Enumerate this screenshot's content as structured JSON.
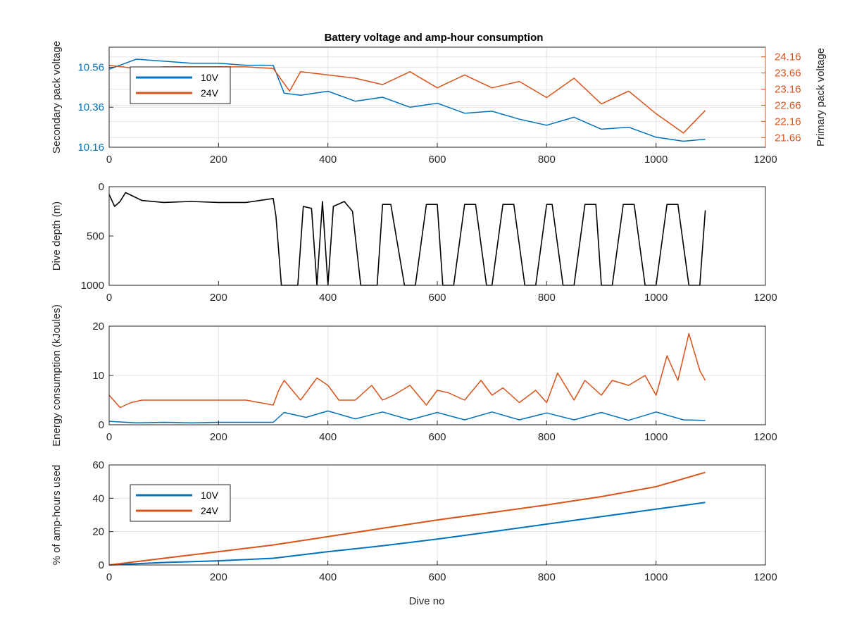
{
  "colors": {
    "s10V": "#0072BD",
    "s24V": "#D95319",
    "depth": "#000000",
    "grid": "#e3e3e3",
    "axis": "#262626"
  },
  "chart_data": [
    {
      "type": "line",
      "title": "Battery voltage and amp-hour consumption",
      "xlabel": "",
      "ylabel": "Secondary pack voltage",
      "y2label": "Primary pack voltage",
      "xlim": [
        0,
        1200
      ],
      "ylim": [
        10.16,
        10.66
      ],
      "y2lim": [
        21.36,
        24.46
      ],
      "xticks": [
        "0",
        "200",
        "400",
        "600",
        "800",
        "1000",
        "1200"
      ],
      "yticks": [
        "10.16",
        "10.36",
        "10.56"
      ],
      "y2ticks": [
        "21.66",
        "22.16",
        "22.66",
        "23.16",
        "23.66",
        "24.16"
      ],
      "grid": true,
      "legend": "top-left",
      "series": [
        {
          "name": "10V",
          "axis": "left",
          "x": [
            0,
            50,
            100,
            150,
            200,
            250,
            300,
            320,
            350,
            400,
            450,
            500,
            550,
            600,
            650,
            700,
            750,
            800,
            850,
            900,
            950,
            1000,
            1050,
            1090
          ],
          "y": [
            10.55,
            10.6,
            10.59,
            10.58,
            10.58,
            10.57,
            10.57,
            10.43,
            10.42,
            10.44,
            10.39,
            10.41,
            10.36,
            10.38,
            10.33,
            10.34,
            10.3,
            10.27,
            10.31,
            10.25,
            10.26,
            10.21,
            10.19,
            10.2
          ]
        },
        {
          "name": "24V",
          "axis": "right",
          "x": [
            0,
            50,
            100,
            150,
            200,
            250,
            300,
            330,
            350,
            400,
            450,
            500,
            550,
            600,
            650,
            700,
            750,
            800,
            850,
            900,
            950,
            1000,
            1050,
            1090
          ],
          "y": [
            23.9,
            23.8,
            23.85,
            23.85,
            23.85,
            23.85,
            23.8,
            23.1,
            23.7,
            23.6,
            23.5,
            23.3,
            23.7,
            23.2,
            23.6,
            23.2,
            23.4,
            22.9,
            23.5,
            22.7,
            23.1,
            22.4,
            21.8,
            22.5
          ]
        }
      ]
    },
    {
      "type": "line",
      "title": "",
      "xlabel": "",
      "ylabel": "Dive depth (m)",
      "xlim": [
        0,
        1200
      ],
      "ylim": [
        0,
        1000
      ],
      "y_reversed": true,
      "xticks": [
        "0",
        "200",
        "400",
        "600",
        "800",
        "1000",
        "1200"
      ],
      "yticks": [
        "0",
        "500",
        "1000"
      ],
      "grid": false,
      "series": [
        {
          "x": [
            0,
            10,
            20,
            30,
            60,
            100,
            150,
            200,
            250,
            300,
            305,
            315,
            330,
            345,
            355,
            370,
            380,
            390,
            400,
            410,
            430,
            445,
            460,
            490,
            500,
            515,
            540,
            560,
            580,
            600,
            610,
            630,
            650,
            670,
            690,
            700,
            720,
            740,
            760,
            780,
            800,
            810,
            830,
            850,
            870,
            890,
            900,
            920,
            940,
            960,
            980,
            1000,
            1020,
            1040,
            1060,
            1080,
            1090
          ],
          "y": [
            80,
            200,
            150,
            60,
            140,
            160,
            150,
            160,
            160,
            120,
            300,
            1000,
            1000,
            1000,
            200,
            220,
            1000,
            150,
            1000,
            200,
            150,
            250,
            1000,
            1000,
            180,
            180,
            1000,
            1000,
            180,
            180,
            1000,
            1000,
            180,
            180,
            1000,
            1000,
            180,
            180,
            1000,
            1000,
            180,
            180,
            1000,
            1000,
            180,
            180,
            1000,
            1000,
            180,
            180,
            1000,
            1000,
            180,
            180,
            1000,
            1000,
            240
          ]
        }
      ]
    },
    {
      "type": "line",
      "title": "",
      "xlabel": "",
      "ylabel": "Energy consumption (kJoules)",
      "xlim": [
        0,
        1200
      ],
      "ylim": [
        0,
        20
      ],
      "xticks": [
        "0",
        "200",
        "400",
        "600",
        "800",
        "1000",
        "1200"
      ],
      "yticks": [
        "0",
        "10",
        "20"
      ],
      "grid": true,
      "series": [
        {
          "name": "10V",
          "x": [
            0,
            50,
            100,
            150,
            200,
            250,
            300,
            320,
            360,
            400,
            450,
            500,
            550,
            600,
            650,
            700,
            750,
            800,
            850,
            900,
            950,
            1000,
            1050,
            1090
          ],
          "y": [
            0.7,
            0.4,
            0.5,
            0.4,
            0.5,
            0.5,
            0.5,
            2.5,
            1.5,
            2.8,
            1.2,
            2.6,
            1.0,
            2.5,
            1.0,
            2.6,
            1.0,
            2.4,
            1.0,
            2.5,
            0.9,
            2.6,
            1.0,
            0.9
          ]
        },
        {
          "name": "24V",
          "x": [
            0,
            20,
            40,
            60,
            100,
            150,
            200,
            250,
            300,
            310,
            320,
            350,
            380,
            400,
            420,
            450,
            480,
            500,
            520,
            550,
            580,
            600,
            620,
            650,
            680,
            700,
            720,
            750,
            780,
            800,
            820,
            850,
            870,
            900,
            920,
            950,
            980,
            1000,
            1020,
            1040,
            1060,
            1080,
            1090
          ],
          "y": [
            6.0,
            3.5,
            4.5,
            5.0,
            5.0,
            5.0,
            5.0,
            5.0,
            4.0,
            7.0,
            9.0,
            5.0,
            9.5,
            8.0,
            5.0,
            5.0,
            8.0,
            5.0,
            6.0,
            8.0,
            4.0,
            7.0,
            6.5,
            5.0,
            9.0,
            6.0,
            7.5,
            4.5,
            7.0,
            4.5,
            10.5,
            5.0,
            9.0,
            6.0,
            9.0,
            8.0,
            10.0,
            6.0,
            14.0,
            9.0,
            18.5,
            11.0,
            9.0
          ]
        }
      ]
    },
    {
      "type": "line",
      "title": "",
      "xlabel": "Dive no",
      "ylabel": "% of amp-hours used",
      "xlim": [
        0,
        1200
      ],
      "ylim": [
        0,
        60
      ],
      "xticks": [
        "0",
        "200",
        "400",
        "600",
        "800",
        "1000",
        "1200"
      ],
      "yticks": [
        "0",
        "20",
        "40",
        "60"
      ],
      "grid": true,
      "legend": "top-left",
      "series": [
        {
          "name": "10V",
          "x": [
            0,
            100,
            200,
            300,
            400,
            500,
            600,
            700,
            800,
            900,
            1000,
            1090
          ],
          "y": [
            0,
            1.5,
            2.5,
            4.0,
            8.0,
            11.5,
            15.5,
            20.0,
            24.5,
            29.0,
            33.5,
            37.5
          ]
        },
        {
          "name": "24V",
          "x": [
            0,
            100,
            200,
            300,
            400,
            500,
            600,
            700,
            800,
            900,
            1000,
            1090
          ],
          "y": [
            0,
            4.0,
            8.0,
            12.0,
            17.0,
            22.0,
            27.0,
            31.5,
            36.0,
            41.0,
            47.0,
            55.5
          ]
        }
      ]
    }
  ]
}
